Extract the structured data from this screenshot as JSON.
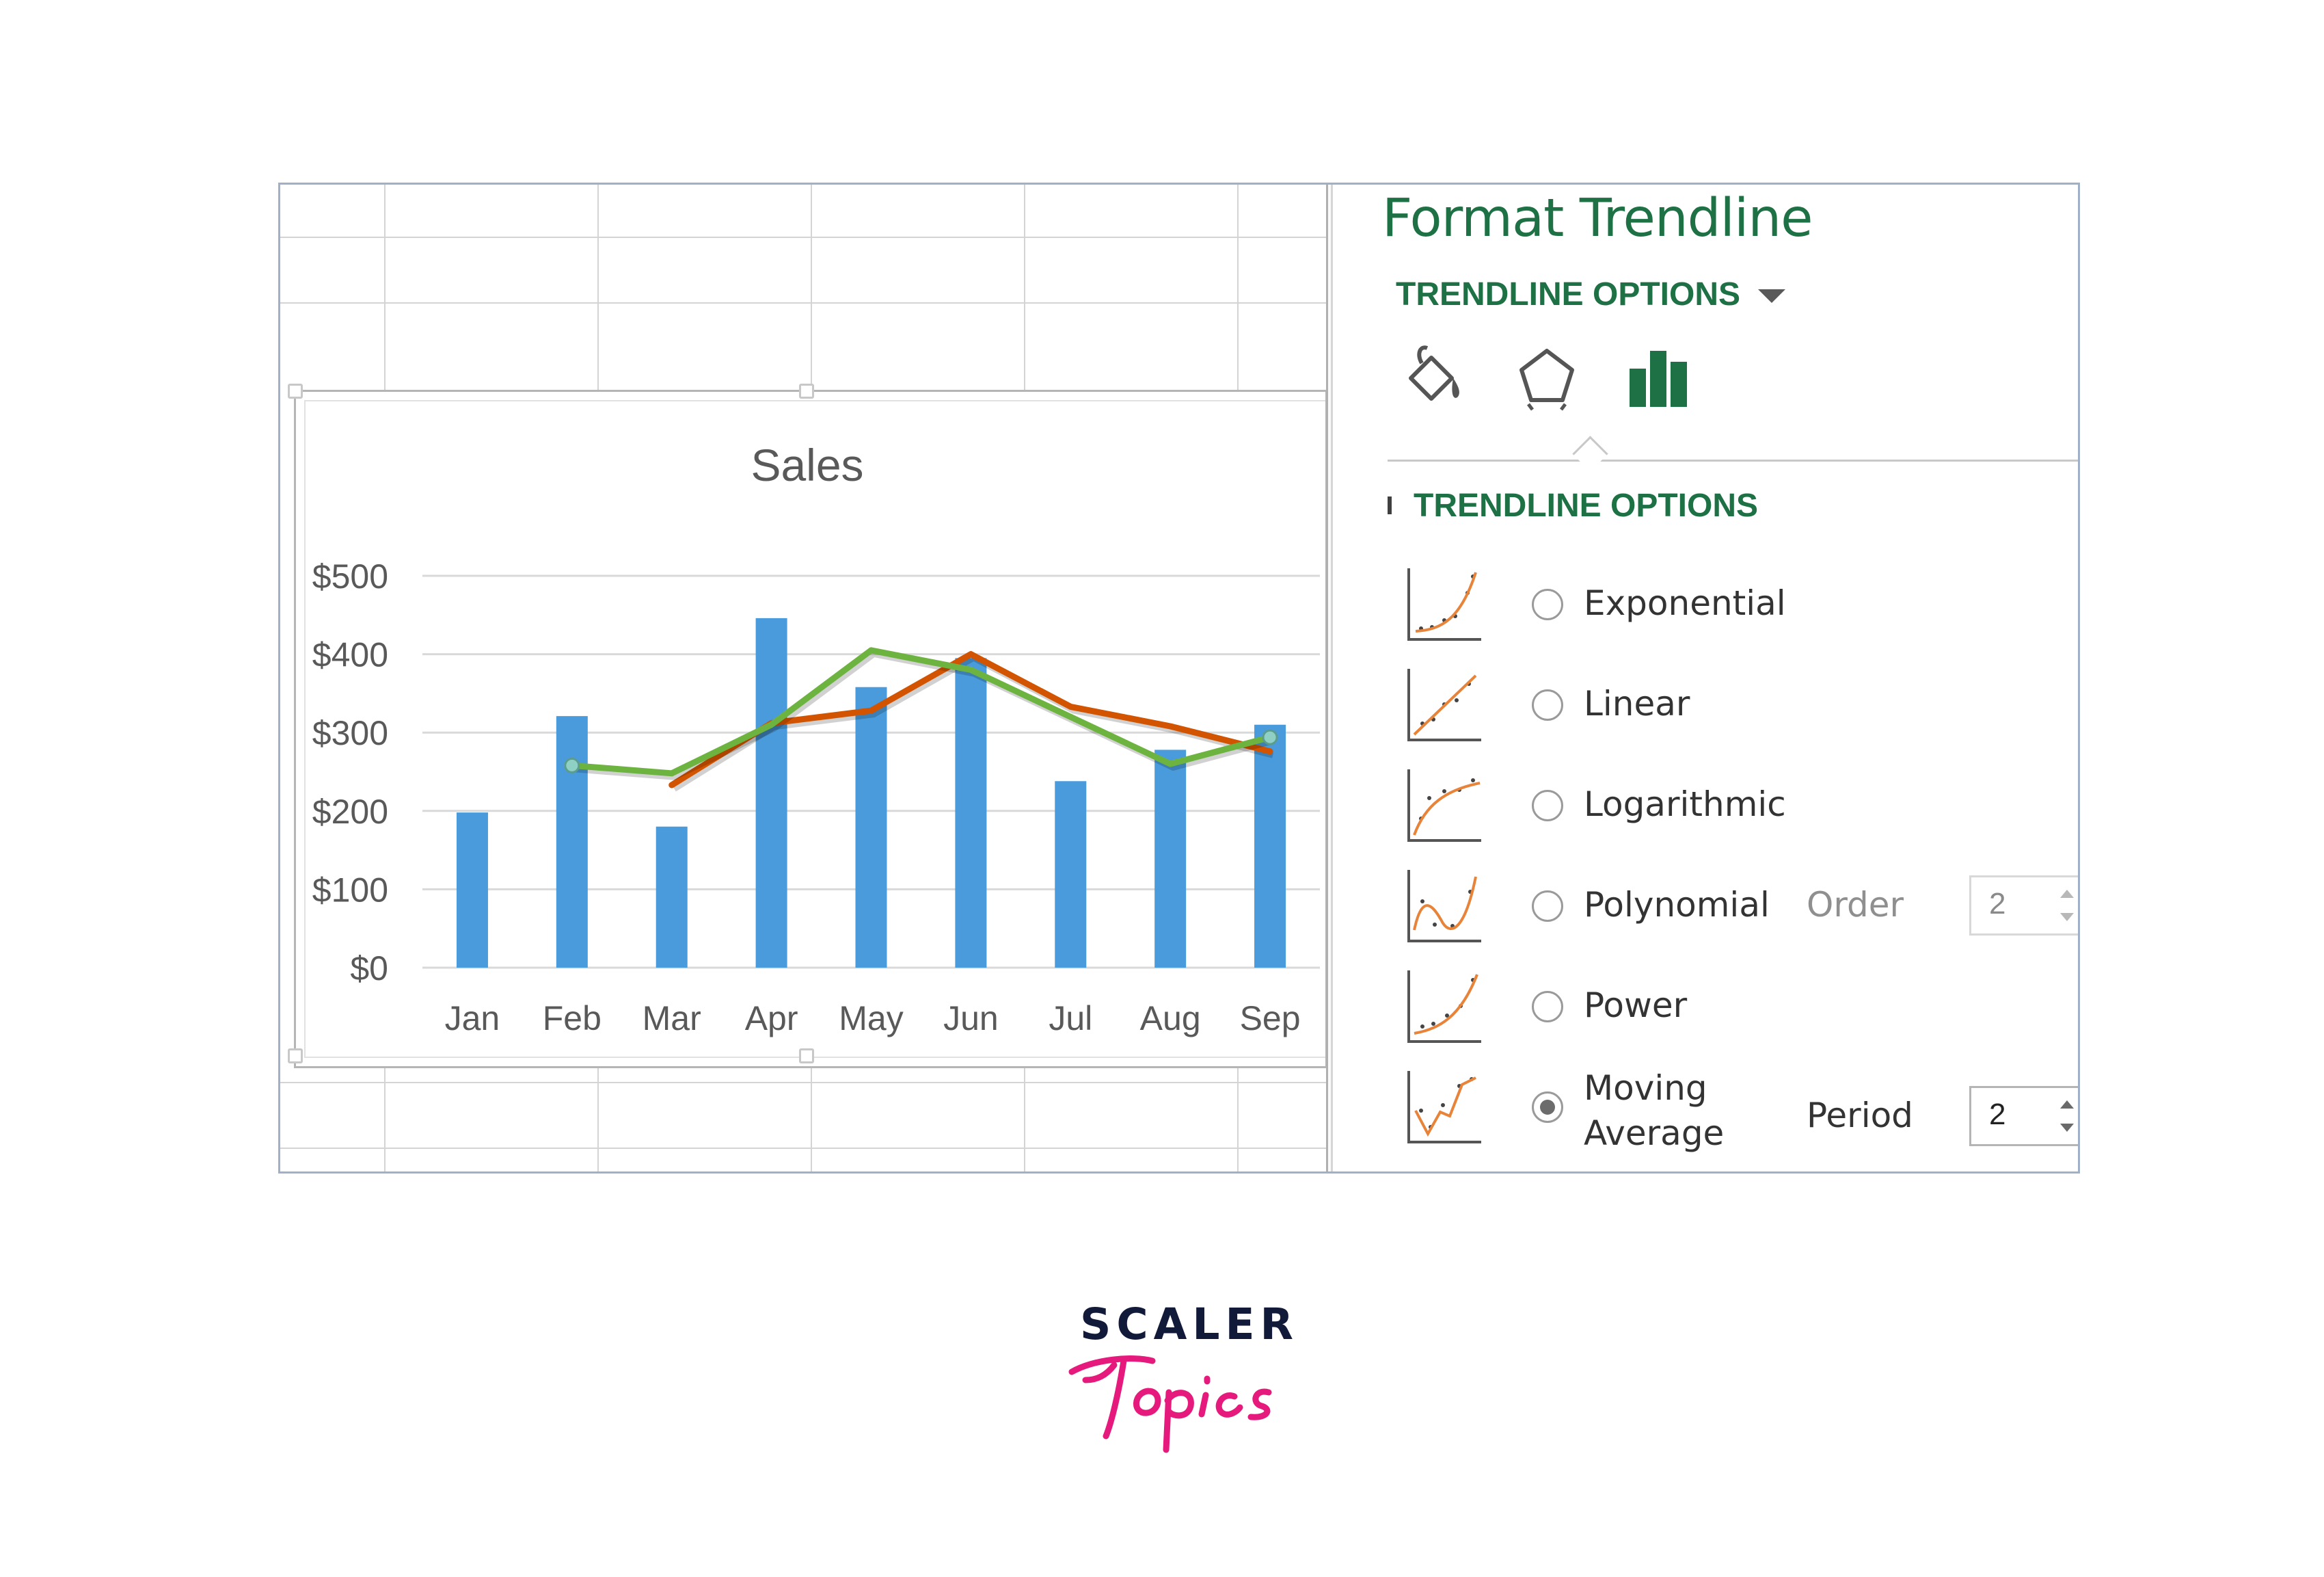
{
  "chart_data": {
    "type": "bar",
    "title": "Sales",
    "categories": [
      "Jan",
      "Feb",
      "Mar",
      "Apr",
      "May",
      "Jun",
      "Jul",
      "Aug",
      "Sep"
    ],
    "y_ticks": [
      "$0",
      "$100",
      "$200",
      "$300",
      "$400",
      "$500"
    ],
    "ylim": [
      0,
      500
    ],
    "grid": true,
    "series": [
      {
        "values": [
          198,
          321,
          180,
          446,
          358,
          395,
          238,
          278,
          310
        ],
        "color": "#4a9bdc",
        "type": "bar"
      },
      {
        "values": [
          null,
          null,
          233,
          312,
          328,
          400,
          333,
          308,
          276
        ],
        "color": "#d35400",
        "type": "line"
      },
      {
        "values": [
          null,
          258,
          248,
          310,
          405,
          380,
          320,
          260,
          294
        ],
        "color": "#6db33f",
        "type": "line"
      }
    ]
  },
  "pane": {
    "title": "Format Trendline",
    "dropdown_label": "TRENDLINE OPTIONS",
    "tabs": [
      {
        "icon": "paint-bucket-icon"
      },
      {
        "icon": "pentagon-icon"
      },
      {
        "icon": "bar-chart-icon"
      }
    ],
    "section_label": "TRENDLINE OPTIONS",
    "options": [
      {
        "label": "Exponential",
        "selected": false,
        "icon": "exponential-curve-icon"
      },
      {
        "label": "Linear",
        "selected": false,
        "icon": "linear-trend-icon"
      },
      {
        "label": "Logarithmic",
        "selected": false,
        "icon": "logarithmic-curve-icon"
      },
      {
        "label": "Polynomial",
        "selected": false,
        "icon": "polynomial-curve-icon"
      },
      {
        "label": "Power",
        "selected": false,
        "icon": "power-curve-icon"
      },
      {
        "label": "Moving Average",
        "label_line1": "Moving",
        "label_line2": "Average",
        "selected": true,
        "icon": "moving-average-icon"
      }
    ],
    "order": {
      "label": "Order",
      "value": "2",
      "enabled": false
    },
    "period": {
      "label": "Period",
      "value": "2",
      "enabled": true
    }
  },
  "logo": {
    "word": "SCALER",
    "script": "Topics",
    "colors": {
      "word": "#121a3a",
      "script": "#e6197c"
    }
  },
  "colors": {
    "accent": "#1e7145",
    "bar": "#4a9bdc",
    "trend_orange": "#d35400",
    "trend_green": "#6db33f"
  }
}
